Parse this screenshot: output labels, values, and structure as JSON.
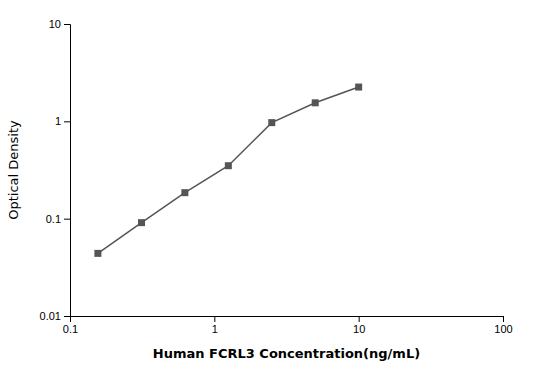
{
  "chart_data": {
    "type": "line",
    "x": [
      0.156,
      0.313,
      0.625,
      1.25,
      2.5,
      5.0,
      10.0
    ],
    "values": [
      0.044,
      0.091,
      0.185,
      0.35,
      0.97,
      1.55,
      2.25
    ],
    "color": "#555555",
    "marker": "square",
    "xlabel": "Human FCRL3 Concentration(ng/mL)",
    "ylabel": "Optical Density",
    "xlim": [
      0.1,
      100
    ],
    "ylim": [
      0.01,
      10
    ],
    "xticks": [
      0.1,
      1,
      10,
      100
    ],
    "yticks": [
      0.01,
      0.1,
      1,
      10
    ],
    "log": true
  }
}
